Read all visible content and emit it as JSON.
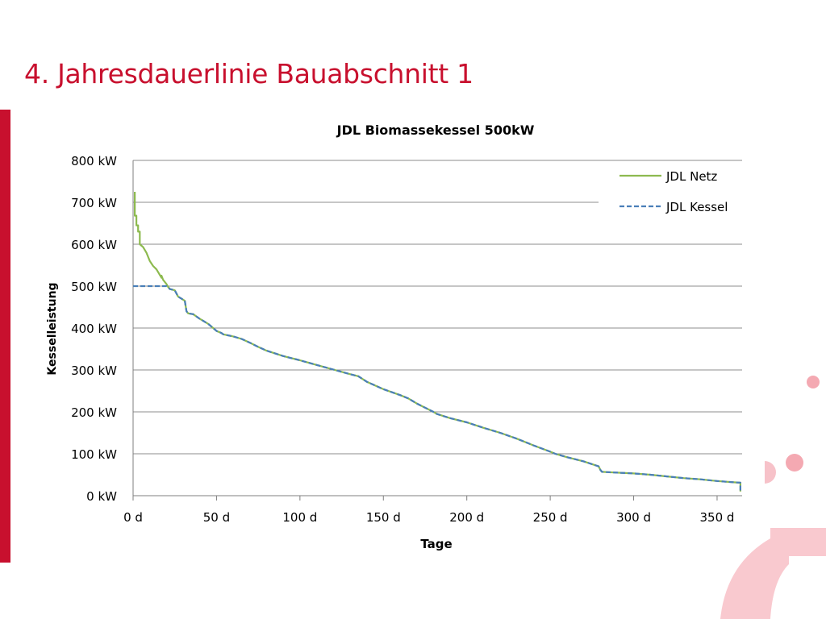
{
  "slide": {
    "title": "4. Jahresdauerlinie Bauabschnitt 1",
    "accent_color": "#c8102e"
  },
  "chart_data": {
    "type": "line",
    "title": "JDL Biomassekessel 500kW",
    "xlabel": "Tage",
    "ylabel": "Kesselleistung",
    "xlim": [
      0,
      365
    ],
    "ylim": [
      0,
      800
    ],
    "x_ticks": [
      0,
      50,
      100,
      150,
      200,
      250,
      300,
      350
    ],
    "x_tick_labels": [
      "0 d",
      "50 d",
      "100 d",
      "150 d",
      "200 d",
      "250 d",
      "300 d",
      "350 d"
    ],
    "y_ticks": [
      0,
      100,
      200,
      300,
      400,
      500,
      600,
      700,
      800
    ],
    "y_tick_labels": [
      "0 kW",
      "100 kW",
      "200 kW",
      "300 kW",
      "400 kW",
      "500 kW",
      "600 kW",
      "700 kW",
      "800 kW"
    ],
    "grid": "horizontal",
    "legend_position": "top-right",
    "series": [
      {
        "name": "JDL Netz",
        "color": "#8dba4f",
        "dash": "solid",
        "x": [
          1,
          1,
          2,
          2,
          3,
          3,
          4,
          4,
          6,
          8,
          10,
          12,
          14,
          17,
          17,
          18,
          19,
          20,
          21,
          22,
          25,
          27,
          29,
          31,
          32,
          33,
          36,
          40,
          45,
          48,
          50,
          53,
          54,
          60,
          65,
          70,
          75,
          80,
          90,
          100,
          110,
          120,
          130,
          135,
          140,
          150,
          160,
          165,
          170,
          180,
          182,
          190,
          200,
          210,
          220,
          230,
          240,
          250,
          253,
          260,
          270,
          279,
          280,
          281,
          290,
          300,
          310,
          320,
          330,
          340,
          350,
          360,
          364,
          364
        ],
        "y": [
          725,
          668,
          668,
          645,
          645,
          630,
          630,
          600,
          593,
          580,
          560,
          548,
          540,
          520,
          525,
          515,
          510,
          505,
          498,
          493,
          490,
          475,
          470,
          465,
          440,
          435,
          433,
          422,
          410,
          400,
          393,
          388,
          385,
          380,
          374,
          365,
          355,
          346,
          333,
          323,
          312,
          301,
          290,
          285,
          272,
          254,
          240,
          232,
          220,
          200,
          195,
          185,
          175,
          162,
          150,
          136,
          120,
          105,
          100,
          92,
          82,
          70,
          62,
          57,
          55,
          53,
          50,
          46,
          42,
          39,
          35,
          32,
          31,
          10
        ]
      },
      {
        "name": "JDL Kessel",
        "color": "#4a7fb8",
        "dash": "dashed",
        "x": [
          0,
          19,
          20,
          21,
          22,
          25,
          27,
          29,
          31,
          32,
          33,
          36,
          40,
          45,
          48,
          50,
          53,
          54,
          60,
          65,
          70,
          75,
          80,
          90,
          100,
          110,
          120,
          130,
          135,
          140,
          150,
          160,
          165,
          170,
          180,
          182,
          190,
          200,
          210,
          220,
          230,
          240,
          250,
          253,
          260,
          270,
          279,
          280,
          281,
          290,
          300,
          310,
          320,
          330,
          340,
          350,
          360,
          364,
          364
        ],
        "y": [
          500,
          500,
          500,
          498,
          493,
          490,
          475,
          470,
          465,
          440,
          435,
          433,
          422,
          410,
          400,
          393,
          388,
          385,
          380,
          374,
          365,
          355,
          346,
          333,
          323,
          312,
          301,
          290,
          285,
          272,
          254,
          240,
          232,
          220,
          200,
          195,
          185,
          175,
          162,
          150,
          136,
          120,
          105,
          100,
          92,
          82,
          70,
          62,
          57,
          55,
          53,
          50,
          46,
          42,
          39,
          35,
          32,
          31,
          10
        ]
      }
    ]
  }
}
